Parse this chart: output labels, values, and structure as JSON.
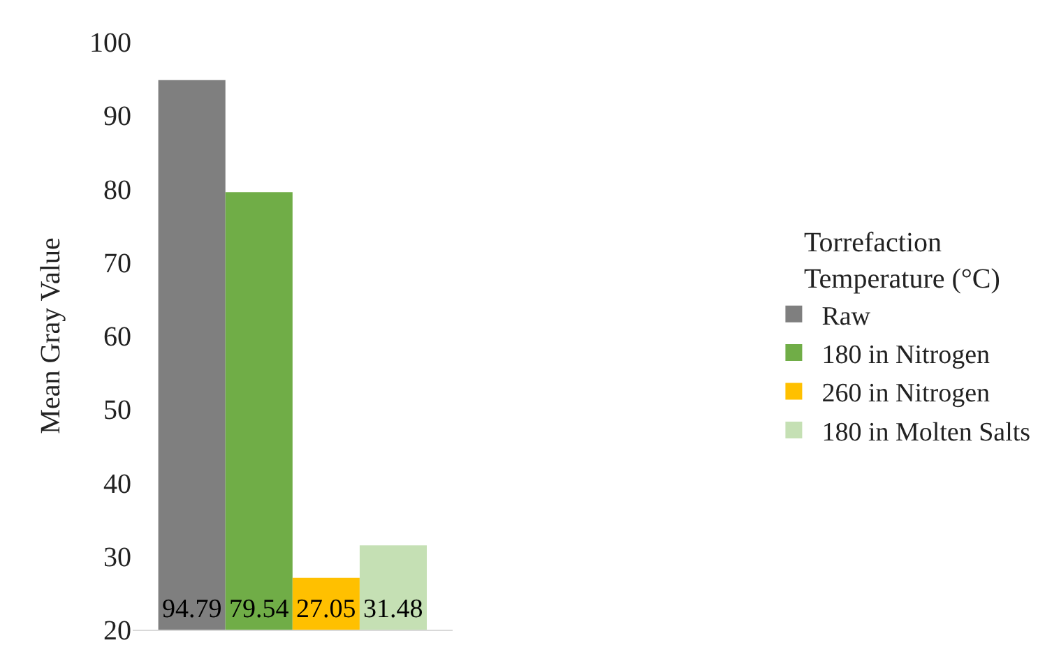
{
  "chart_data": {
    "type": "bar",
    "ylabel": "Mean Gray Value",
    "legend_title": "Torrefaction Temperature (°C)",
    "categories": [
      null
    ],
    "series": [
      {
        "name": "Raw",
        "color": "#7f7f7f",
        "values": [
          94.79
        ]
      },
      {
        "name": "180 in Nitrogen",
        "color": "#70ad47",
        "values": [
          79.54
        ]
      },
      {
        "name": "260 in Nitrogen",
        "color": "#ffc000",
        "values": [
          27.05
        ]
      },
      {
        "name": "180 in Molten Salts",
        "color": "#c5e0b4",
        "values": [
          31.48
        ]
      }
    ],
    "ylim": [
      20,
      100
    ],
    "yticks": [
      20,
      30,
      40,
      50,
      60,
      70,
      80,
      90,
      100
    ],
    "data_labels": true,
    "legend": "right"
  }
}
